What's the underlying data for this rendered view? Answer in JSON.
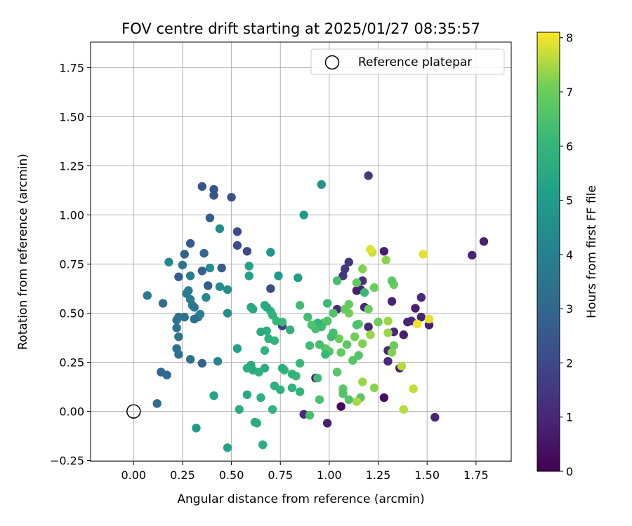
{
  "chart_data": {
    "type": "scatter",
    "title": "FOV centre drift starting at 2025/01/27 08:35:57",
    "xlabel": "Angular distance from reference (arcmin)",
    "ylabel": "Rotation from reference (arcmin)",
    "xlim": [
      -0.22,
      1.93
    ],
    "ylim": [
      -0.255,
      1.88
    ],
    "xticks": [
      0.0,
      0.25,
      0.5,
      0.75,
      1.0,
      1.25,
      1.5,
      1.75
    ],
    "xtick_labels": [
      "0.00",
      "0.25",
      "0.50",
      "0.75",
      "1.00",
      "1.25",
      "1.50",
      "1.75"
    ],
    "yticks": [
      -0.25,
      0.0,
      0.25,
      0.5,
      0.75,
      1.0,
      1.25,
      1.5,
      1.75
    ],
    "ytick_labels": [
      "−0.25",
      "0.00",
      "0.25",
      "0.50",
      "0.75",
      "1.00",
      "1.25",
      "1.50",
      "1.75"
    ],
    "grid": true,
    "legend": {
      "position": "top-right",
      "entries": [
        {
          "label": "Reference platepar",
          "marker": "open-circle"
        }
      ]
    },
    "reference_point": {
      "x": 0.0,
      "y": 0.0
    },
    "colorbar": {
      "label": "Hours from first FF file",
      "colormap": "viridis",
      "range": [
        0,
        8.1
      ],
      "ticks": [
        0,
        1,
        2,
        3,
        4,
        5,
        6,
        7,
        8
      ],
      "tick_labels": [
        "0",
        "1",
        "2",
        "3",
        "4",
        "5",
        "6",
        "7",
        "8"
      ]
    },
    "points": [
      {
        "x": 1.79,
        "y": 0.865,
        "c": 0.8
      },
      {
        "x": 1.73,
        "y": 0.795,
        "c": 0.9
      },
      {
        "x": 1.51,
        "y": 0.44,
        "c": 0.8
      },
      {
        "x": 1.54,
        "y": -0.03,
        "c": 0.9
      },
      {
        "x": 1.47,
        "y": 0.58,
        "c": 1.0
      },
      {
        "x": 1.47,
        "y": 0.48,
        "c": 0.9
      },
      {
        "x": 1.44,
        "y": 0.525,
        "c": 0.8
      },
      {
        "x": 1.42,
        "y": 0.46,
        "c": 1.1
      },
      {
        "x": 1.4,
        "y": 0.455,
        "c": 0.9
      },
      {
        "x": 1.38,
        "y": 0.39,
        "c": 0.8
      },
      {
        "x": 1.36,
        "y": 0.22,
        "c": 0.8
      },
      {
        "x": 1.33,
        "y": 0.405,
        "c": 1.0
      },
      {
        "x": 1.32,
        "y": 0.56,
        "c": 0.9
      },
      {
        "x": 1.3,
        "y": 0.31,
        "c": 0.9
      },
      {
        "x": 1.3,
        "y": 0.255,
        "c": 1.0
      },
      {
        "x": 1.28,
        "y": 0.07,
        "c": 0.3
      },
      {
        "x": 1.28,
        "y": 0.815,
        "c": 0.7
      },
      {
        "x": 1.2,
        "y": 1.2,
        "c": 1.6
      },
      {
        "x": 1.2,
        "y": 0.43,
        "c": 1.1
      },
      {
        "x": 1.18,
        "y": 0.53,
        "c": 1.0
      },
      {
        "x": 1.16,
        "y": 0.62,
        "c": 0.9
      },
      {
        "x": 1.17,
        "y": 0.665,
        "c": 1.3
      },
      {
        "x": 1.14,
        "y": 0.615,
        "c": 0.8
      },
      {
        "x": 1.1,
        "y": 0.76,
        "c": 1.4
      },
      {
        "x": 1.08,
        "y": 0.725,
        "c": 1.5
      },
      {
        "x": 1.07,
        "y": 0.69,
        "c": 1.5
      },
      {
        "x": 1.06,
        "y": 0.025,
        "c": 0.2
      },
      {
        "x": 1.04,
        "y": 0.52,
        "c": 1.1
      },
      {
        "x": 0.99,
        "y": -0.06,
        "c": 0.8
      },
      {
        "x": 0.93,
        "y": 0.17,
        "c": 0.7
      },
      {
        "x": 0.87,
        "y": -0.015,
        "c": 1.0
      },
      {
        "x": 0.76,
        "y": 0.435,
        "c": 1.7
      },
      {
        "x": 0.7,
        "y": 0.625,
        "c": 2.1
      },
      {
        "x": 1.51,
        "y": 0.47,
        "c": 7.9
      },
      {
        "x": 1.48,
        "y": 0.8,
        "c": 7.9
      },
      {
        "x": 1.45,
        "y": 0.445,
        "c": 8.0
      },
      {
        "x": 1.43,
        "y": 0.115,
        "c": 7.7
      },
      {
        "x": 1.38,
        "y": 0.01,
        "c": 7.6
      },
      {
        "x": 1.37,
        "y": 0.23,
        "c": 7.6
      },
      {
        "x": 1.33,
        "y": 0.335,
        "c": 7.0
      },
      {
        "x": 1.32,
        "y": 0.3,
        "c": 7.2
      },
      {
        "x": 1.33,
        "y": 0.645,
        "c": 7.0
      },
      {
        "x": 1.32,
        "y": 0.665,
        "c": 6.8
      },
      {
        "x": 1.3,
        "y": 0.46,
        "c": 7.4
      },
      {
        "x": 1.3,
        "y": 0.4,
        "c": 7.4
      },
      {
        "x": 1.29,
        "y": 0.77,
        "c": 7.3
      },
      {
        "x": 1.25,
        "y": 0.455,
        "c": 7.0
      },
      {
        "x": 1.23,
        "y": 0.12,
        "c": 7.3
      },
      {
        "x": 1.23,
        "y": 0.63,
        "c": 7.0
      },
      {
        "x": 1.22,
        "y": 0.81,
        "c": 7.7
      },
      {
        "x": 1.21,
        "y": 0.825,
        "c": 7.9
      },
      {
        "x": 1.21,
        "y": 0.39,
        "c": 7.4
      },
      {
        "x": 1.2,
        "y": 0.52,
        "c": 7.0
      },
      {
        "x": 1.18,
        "y": 0.605,
        "c": 6.2
      },
      {
        "x": 1.17,
        "y": 0.725,
        "c": 7.2
      },
      {
        "x": 1.17,
        "y": 0.15,
        "c": 7.4
      },
      {
        "x": 1.17,
        "y": 0.345,
        "c": 7.2
      },
      {
        "x": 1.15,
        "y": 0.445,
        "c": 6.8
      },
      {
        "x": 1.16,
        "y": 0.07,
        "c": 6.8
      },
      {
        "x": 1.14,
        "y": 0.05,
        "c": 7.5
      },
      {
        "x": 1.15,
        "y": 0.285,
        "c": 6.6
      },
      {
        "x": 1.14,
        "y": 0.655,
        "c": 6.9
      },
      {
        "x": 1.14,
        "y": 0.44,
        "c": 6.5
      },
      {
        "x": 1.13,
        "y": 0.38,
        "c": 7.1
      },
      {
        "x": 1.12,
        "y": 0.26,
        "c": 6.7
      },
      {
        "x": 1.1,
        "y": 0.545,
        "c": 6.9
      },
      {
        "x": 1.1,
        "y": 0.5,
        "c": 7.1
      },
      {
        "x": 1.1,
        "y": 0.06,
        "c": 6.6
      },
      {
        "x": 1.09,
        "y": 0.34,
        "c": 6.8
      },
      {
        "x": 1.08,
        "y": 0.52,
        "c": 6.9
      },
      {
        "x": 1.07,
        "y": 0.115,
        "c": 6.8
      },
      {
        "x": 1.07,
        "y": 0.09,
        "c": 6.6
      },
      {
        "x": 1.06,
        "y": 0.3,
        "c": 6.9
      },
      {
        "x": 1.05,
        "y": 0.37,
        "c": 7.0
      },
      {
        "x": 1.04,
        "y": 0.2,
        "c": 6.7
      },
      {
        "x": 1.04,
        "y": 0.665,
        "c": 6.4
      },
      {
        "x": 1.02,
        "y": 0.5,
        "c": 6.6
      },
      {
        "x": 1.02,
        "y": 0.4,
        "c": 6.4
      },
      {
        "x": 1.01,
        "y": 0.38,
        "c": 6.3
      },
      {
        "x": 1.0,
        "y": 0.305,
        "c": 6.6
      },
      {
        "x": 0.99,
        "y": 0.55,
        "c": 6.2
      },
      {
        "x": 0.99,
        "y": 0.46,
        "c": 6.5
      },
      {
        "x": 0.98,
        "y": 0.32,
        "c": 6.7
      },
      {
        "x": 0.98,
        "y": 0.29,
        "c": 6.1
      },
      {
        "x": 0.97,
        "y": 0.45,
        "c": 6.6
      },
      {
        "x": 0.96,
        "y": 0.43,
        "c": 6.3
      },
      {
        "x": 0.95,
        "y": 0.34,
        "c": 6.4
      },
      {
        "x": 0.95,
        "y": 0.06,
        "c": 6.5
      },
      {
        "x": 0.94,
        "y": 0.45,
        "c": 6.0
      },
      {
        "x": 0.94,
        "y": 0.17,
        "c": 6.2
      },
      {
        "x": 0.93,
        "y": 0.42,
        "c": 6.3
      },
      {
        "x": 0.91,
        "y": 0.44,
        "c": 6.5
      },
      {
        "x": 0.9,
        "y": 0.335,
        "c": 6.3
      },
      {
        "x": 0.9,
        "y": -0.02,
        "c": 6.4
      },
      {
        "x": 0.89,
        "y": 0.48,
        "c": 6.3
      },
      {
        "x": 0.85,
        "y": 0.54,
        "c": 6.3
      },
      {
        "x": 0.85,
        "y": 0.245,
        "c": 6.1
      },
      {
        "x": 0.85,
        "y": 0.1,
        "c": 5.9
      },
      {
        "x": 0.83,
        "y": 0.18,
        "c": 6.1
      },
      {
        "x": 0.81,
        "y": 0.12,
        "c": 5.9
      },
      {
        "x": 0.81,
        "y": 0.19,
        "c": 5.9
      },
      {
        "x": 0.8,
        "y": 0.415,
        "c": 5.8
      },
      {
        "x": 0.77,
        "y": 0.21,
        "c": 6.0
      },
      {
        "x": 0.76,
        "y": 0.22,
        "c": 5.7
      },
      {
        "x": 0.76,
        "y": 0.455,
        "c": 6.2
      },
      {
        "x": 0.75,
        "y": 0.11,
        "c": 5.8
      },
      {
        "x": 0.73,
        "y": 0.46,
        "c": 6.1
      },
      {
        "x": 0.72,
        "y": 0.36,
        "c": 5.9
      },
      {
        "x": 0.72,
        "y": 0.13,
        "c": 5.8
      },
      {
        "x": 0.71,
        "y": 0.49,
        "c": 6.0
      },
      {
        "x": 0.71,
        "y": 0.01,
        "c": 5.9
      },
      {
        "x": 0.7,
        "y": 0.51,
        "c": 5.9
      },
      {
        "x": 0.69,
        "y": 0.37,
        "c": 5.8
      },
      {
        "x": 0.68,
        "y": 0.41,
        "c": 5.7
      },
      {
        "x": 0.68,
        "y": 0.53,
        "c": 5.4
      },
      {
        "x": 0.67,
        "y": 0.31,
        "c": 5.9
      },
      {
        "x": 0.67,
        "y": 0.54,
        "c": 5.5
      },
      {
        "x": 0.67,
        "y": 0.22,
        "c": 5.6
      },
      {
        "x": 0.66,
        "y": -0.17,
        "c": 5.6
      },
      {
        "x": 0.65,
        "y": 0.405,
        "c": 5.5
      },
      {
        "x": 0.65,
        "y": 0.07,
        "c": 5.7
      },
      {
        "x": 0.64,
        "y": 0.2,
        "c": 5.8
      },
      {
        "x": 0.63,
        "y": -0.06,
        "c": 5.8
      },
      {
        "x": 0.62,
        "y": -0.055,
        "c": 5.6
      },
      {
        "x": 0.61,
        "y": 0.21,
        "c": 5.6
      },
      {
        "x": 0.61,
        "y": 0.52,
        "c": 5.5
      },
      {
        "x": 0.6,
        "y": 0.53,
        "c": 5.5
      },
      {
        "x": 0.6,
        "y": 0.235,
        "c": 5.5
      },
      {
        "x": 0.58,
        "y": 0.085,
        "c": 5.5
      },
      {
        "x": 0.58,
        "y": 0.22,
        "c": 5.7
      },
      {
        "x": 0.59,
        "y": 0.69,
        "c": 5.2
      },
      {
        "x": 0.59,
        "y": 0.74,
        "c": 5.3
      },
      {
        "x": 0.54,
        "y": 0.01,
        "c": 5.6
      },
      {
        "x": 0.53,
        "y": 0.32,
        "c": 5.2
      },
      {
        "x": 0.48,
        "y": -0.185,
        "c": 5.3
      },
      {
        "x": 0.41,
        "y": 0.08,
        "c": 5.3
      },
      {
        "x": 0.32,
        "y": -0.085,
        "c": 5.0
      },
      {
        "x": 0.96,
        "y": 1.155,
        "c": 4.7
      },
      {
        "x": 0.87,
        "y": 1.0,
        "c": 5.0
      },
      {
        "x": 0.84,
        "y": 0.68,
        "c": 5.1
      },
      {
        "x": 0.74,
        "y": 0.69,
        "c": 5.0
      },
      {
        "x": 0.7,
        "y": 0.81,
        "c": 4.8
      },
      {
        "x": 0.48,
        "y": 0.5,
        "c": 4.4
      },
      {
        "x": 0.48,
        "y": 0.62,
        "c": 4.5
      },
      {
        "x": 0.44,
        "y": 0.635,
        "c": 4.4
      },
      {
        "x": 0.44,
        "y": 0.93,
        "c": 4.4
      },
      {
        "x": 0.43,
        "y": 0.255,
        "c": 4.2
      },
      {
        "x": 0.39,
        "y": 0.73,
        "c": 4.4
      },
      {
        "x": 0.37,
        "y": 0.58,
        "c": 4.3
      },
      {
        "x": 0.34,
        "y": 0.495,
        "c": 4.1
      },
      {
        "x": 0.33,
        "y": 0.48,
        "c": 4.0
      },
      {
        "x": 0.3,
        "y": 0.54,
        "c": 4.2
      },
      {
        "x": 0.29,
        "y": 0.57,
        "c": 3.9
      },
      {
        "x": 0.29,
        "y": 0.69,
        "c": 3.9
      },
      {
        "x": 0.28,
        "y": 0.615,
        "c": 3.8
      },
      {
        "x": 0.27,
        "y": 0.6,
        "c": 3.8
      },
      {
        "x": 0.18,
        "y": 0.76,
        "c": 4.3
      },
      {
        "x": 0.07,
        "y": 0.59,
        "c": 3.8
      },
      {
        "x": 0.29,
        "y": 0.265,
        "c": 3.4
      },
      {
        "x": 0.25,
        "y": 0.745,
        "c": 3.6
      },
      {
        "x": 0.31,
        "y": 0.47,
        "c": 3.3
      },
      {
        "x": 0.31,
        "y": 0.53,
        "c": 3.6
      },
      {
        "x": 0.26,
        "y": 0.48,
        "c": 3.4
      },
      {
        "x": 0.23,
        "y": 0.48,
        "c": 3.5
      },
      {
        "x": 0.22,
        "y": 0.465,
        "c": 3.5
      },
      {
        "x": 0.22,
        "y": 0.425,
        "c": 3.4
      },
      {
        "x": 0.23,
        "y": 0.38,
        "c": 3.4
      },
      {
        "x": 0.22,
        "y": 0.32,
        "c": 3.5
      },
      {
        "x": 0.23,
        "y": 0.29,
        "c": 3.4
      },
      {
        "x": 0.15,
        "y": 0.55,
        "c": 3.2
      },
      {
        "x": 0.17,
        "y": 0.185,
        "c": 3.1
      },
      {
        "x": 0.14,
        "y": 0.2,
        "c": 3.0
      },
      {
        "x": 0.12,
        "y": 0.04,
        "c": 3.1
      },
      {
        "x": 0.36,
        "y": 0.805,
        "c": 3.1
      },
      {
        "x": 0.38,
        "y": 0.64,
        "c": 2.7
      },
      {
        "x": 0.35,
        "y": 0.245,
        "c": 2.8
      },
      {
        "x": 0.26,
        "y": 0.8,
        "c": 2.8
      },
      {
        "x": 0.29,
        "y": 0.855,
        "c": 2.6
      },
      {
        "x": 0.23,
        "y": 0.685,
        "c": 2.6
      },
      {
        "x": 0.35,
        "y": 0.715,
        "c": 2.8
      },
      {
        "x": 0.39,
        "y": 0.985,
        "c": 2.7
      },
      {
        "x": 0.45,
        "y": 0.73,
        "c": 2.6
      },
      {
        "x": 0.35,
        "y": 1.145,
        "c": 2.4
      },
      {
        "x": 0.41,
        "y": 1.13,
        "c": 2.4
      },
      {
        "x": 0.41,
        "y": 1.1,
        "c": 2.4
      },
      {
        "x": 0.5,
        "y": 1.09,
        "c": 2.3
      },
      {
        "x": 0.53,
        "y": 0.915,
        "c": 2.2
      },
      {
        "x": 0.53,
        "y": 0.845,
        "c": 2.2
      },
      {
        "x": 0.58,
        "y": 0.815,
        "c": 2.1
      }
    ]
  }
}
